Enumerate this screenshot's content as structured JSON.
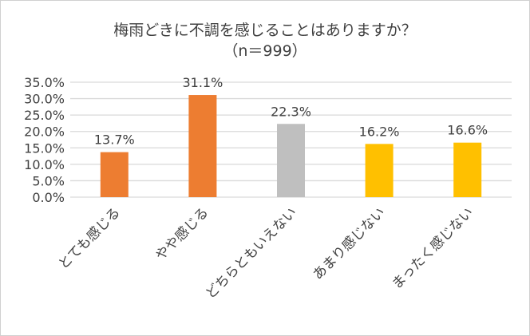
{
  "chart_data": {
    "type": "bar",
    "title": "梅雨どきに不調を感じることはありますか？",
    "subtitle": "（n＝999）",
    "categories": [
      "とても感じる",
      "やや感じる",
      "どちらともいえない",
      "あまり感じない",
      "まったく感じない"
    ],
    "values": [
      13.7,
      31.1,
      22.3,
      16.2,
      16.6
    ],
    "data_labels": [
      "13.7%",
      "31.1%",
      "22.3%",
      "16.2%",
      "16.6%"
    ],
    "colors": [
      "#ED7D31",
      "#ED7D31",
      "#BFBFBF",
      "#FFC000",
      "#FFC000"
    ],
    "ylim": [
      0,
      35
    ],
    "yticks": [
      "0.0%",
      "5.0%",
      "10.0%",
      "15.0%",
      "20.0%",
      "25.0%",
      "30.0%",
      "35.0%"
    ],
    "grid": true,
    "legend": "none",
    "xlabel": "",
    "ylabel": ""
  }
}
